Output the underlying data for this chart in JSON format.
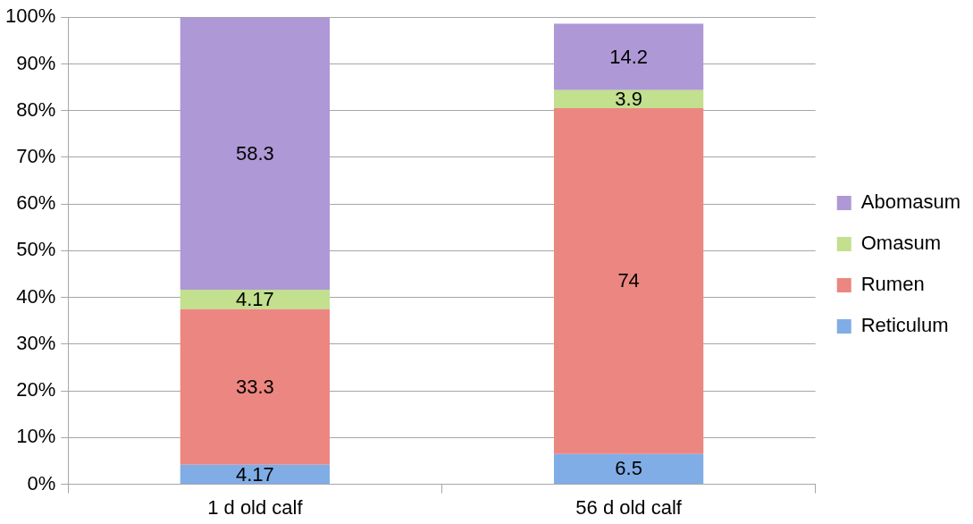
{
  "chart_data": {
    "type": "bar",
    "stacked": true,
    "categories": [
      "1 d old calf",
      "56 d old calf"
    ],
    "series": [
      {
        "name": "Reticulum",
        "color": "#80ade6",
        "values": [
          4.17,
          6.5
        ]
      },
      {
        "name": "Rumen",
        "color": "#ec8680",
        "values": [
          33.3,
          74
        ]
      },
      {
        "name": "Omasum",
        "color": "#c2e08e",
        "values": [
          4.17,
          3.9
        ]
      },
      {
        "name": "Abomasum",
        "color": "#ae98d6",
        "values": [
          58.3,
          14.2
        ]
      }
    ],
    "ylim": [
      0,
      100
    ],
    "yticks": [
      {
        "value": 0,
        "label": "0%"
      },
      {
        "value": 10,
        "label": "10%"
      },
      {
        "value": 20,
        "label": "20%"
      },
      {
        "value": 30,
        "label": "30%"
      },
      {
        "value": 40,
        "label": "40%"
      },
      {
        "value": 50,
        "label": "50%"
      },
      {
        "value": 60,
        "label": "60%"
      },
      {
        "value": 70,
        "label": "70%"
      },
      {
        "value": 80,
        "label": "80%"
      },
      {
        "value": 90,
        "label": "90%"
      },
      {
        "value": 100,
        "label": "100%"
      }
    ],
    "grid": "y",
    "legend": "right",
    "data_labels": true
  }
}
